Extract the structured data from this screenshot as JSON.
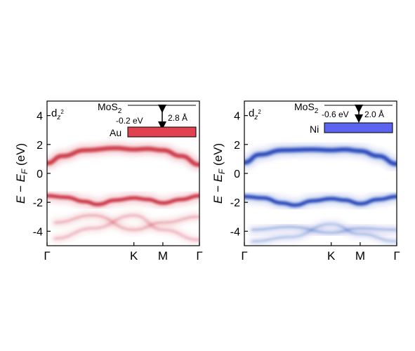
{
  "chart_data": [
    {
      "type": "heatmap",
      "panel_label": "d",
      "panel_label_sub": "z",
      "panel_label_sup": "2",
      "ylabel_main": "E − E",
      "ylabel_sub": "F",
      "ylabel_unit": " (eV)",
      "ylim": [
        -5,
        5
      ],
      "yticks": [
        "4",
        "2",
        "0",
        "-2",
        "-4"
      ],
      "ytick_values": [
        4,
        2,
        0,
        -2,
        -4
      ],
      "xticks": [
        "Γ",
        "K",
        "M",
        "Γ"
      ],
      "xtick_values": [
        0,
        0.57,
        0.76,
        1.0
      ],
      "inset": {
        "layer_top": "MoS",
        "layer_top_sub": "2",
        "shift": "-0.2 eV",
        "distance": "2.8 Å",
        "metal": "Au",
        "metal_color": "#e0434f"
      },
      "band_color": "#c81e32",
      "bands": [
        {
          "name": "upper",
          "points": [
            [
              0,
              0.7
            ],
            [
              0.1,
              1.2
            ],
            [
              0.25,
              1.6
            ],
            [
              0.45,
              1.75
            ],
            [
              0.57,
              1.65
            ],
            [
              0.66,
              1.7
            ],
            [
              0.76,
              1.6
            ],
            [
              0.88,
              1.2
            ],
            [
              1.0,
              0.6
            ]
          ]
        },
        {
          "name": "lower",
          "points": [
            [
              0,
              -1.55
            ],
            [
              0.12,
              -1.65
            ],
            [
              0.25,
              -1.95
            ],
            [
              0.33,
              -2.15
            ],
            [
              0.45,
              -1.85
            ],
            [
              0.57,
              -1.7
            ],
            [
              0.66,
              -1.8
            ],
            [
              0.76,
              -2.05
            ],
            [
              0.88,
              -1.8
            ],
            [
              1.0,
              -1.55
            ]
          ]
        },
        {
          "name": "deep-a",
          "points": [
            [
              0.05,
              -3.4
            ],
            [
              0.3,
              -2.9
            ],
            [
              0.57,
              -3.9
            ],
            [
              0.76,
              -3.4
            ],
            [
              1.0,
              -3.0
            ]
          ]
        },
        {
          "name": "deep-b",
          "points": [
            [
              0.05,
              -4.5
            ],
            [
              0.3,
              -3.8
            ],
            [
              0.57,
              -2.9
            ],
            [
              0.76,
              -3.9
            ],
            [
              1.0,
              -4.6
            ]
          ]
        }
      ]
    },
    {
      "type": "heatmap",
      "panel_label": "d",
      "panel_label_sub": "z",
      "panel_label_sup": "2",
      "ylabel_main": "E − E",
      "ylabel_sub": "F",
      "ylabel_unit": " (eV)",
      "ylim": [
        -5,
        5
      ],
      "yticks": [
        "4",
        "2",
        "0",
        "-2",
        "-4"
      ],
      "ytick_values": [
        4,
        2,
        0,
        -2,
        -4
      ],
      "xticks": [
        "Γ",
        "K",
        "M",
        "Γ"
      ],
      "xtick_values": [
        0,
        0.57,
        0.76,
        1.0
      ],
      "inset": {
        "layer_top": "MoS",
        "layer_top_sub": "2",
        "shift": "-0.6 eV",
        "distance": "2.0 Å",
        "metal": "Ni",
        "metal_color": "#5a64f0"
      },
      "band_color": "#0a32b4",
      "bands": [
        {
          "name": "upper",
          "points": [
            [
              0,
              0.75
            ],
            [
              0.1,
              1.3
            ],
            [
              0.25,
              1.6
            ],
            [
              0.45,
              1.65
            ],
            [
              0.57,
              1.6
            ],
            [
              0.66,
              1.65
            ],
            [
              0.76,
              1.55
            ],
            [
              0.88,
              1.2
            ],
            [
              1.0,
              0.65
            ]
          ]
        },
        {
          "name": "lower",
          "points": [
            [
              0,
              -1.6
            ],
            [
              0.12,
              -1.7
            ],
            [
              0.25,
              -2.05
            ],
            [
              0.33,
              -2.2
            ],
            [
              0.45,
              -1.9
            ],
            [
              0.57,
              -1.75
            ],
            [
              0.66,
              -1.85
            ],
            [
              0.76,
              -2.1
            ],
            [
              0.88,
              -1.8
            ],
            [
              1.0,
              -1.6
            ]
          ]
        },
        {
          "name": "deep-a",
          "points": [
            [
              0.05,
              -3.9
            ],
            [
              0.3,
              -3.7
            ],
            [
              0.57,
              -4.1
            ],
            [
              0.76,
              -3.8
            ],
            [
              1.0,
              -3.9
            ]
          ]
        },
        {
          "name": "deep-b",
          "points": [
            [
              0.05,
              -4.7
            ],
            [
              0.3,
              -4.4
            ],
            [
              0.57,
              -3.5
            ],
            [
              0.76,
              -4.2
            ],
            [
              1.0,
              -4.7
            ]
          ]
        }
      ]
    }
  ]
}
